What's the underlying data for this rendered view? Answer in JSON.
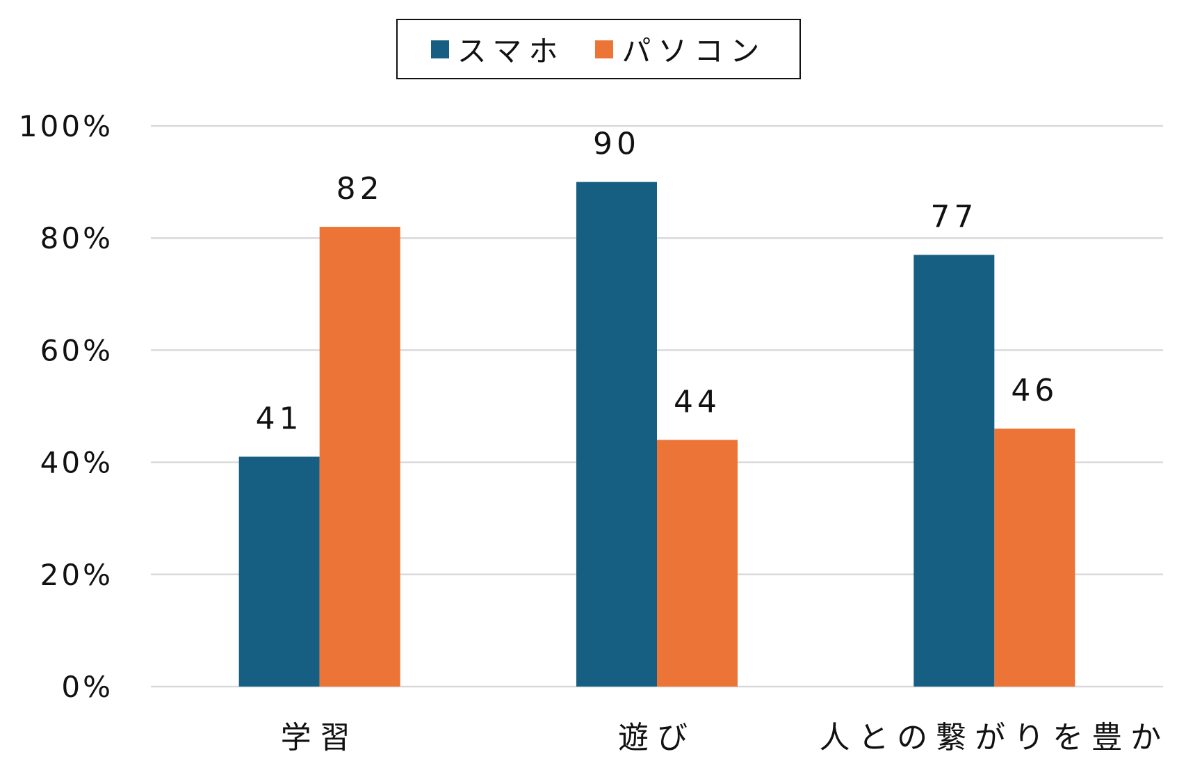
{
  "chart_data": {
    "type": "bar",
    "categories": [
      "学習",
      "遊び",
      "人との繋がりを豊か"
    ],
    "series": [
      {
        "name": "スマホ",
        "color": "#175f82",
        "values": [
          41,
          90,
          77
        ]
      },
      {
        "name": "パソコン",
        "color": "#eb7436",
        "values": [
          82,
          44,
          46
        ]
      }
    ],
    "data_labels": [
      [
        "41",
        "90",
        "77"
      ],
      [
        "82",
        "44",
        "46"
      ]
    ],
    "y_ticks": [
      "0%",
      "20%",
      "40%",
      "60%",
      "80%",
      "100%"
    ],
    "ylim": [
      0,
      100
    ],
    "grid": true,
    "legend": "top-center"
  }
}
